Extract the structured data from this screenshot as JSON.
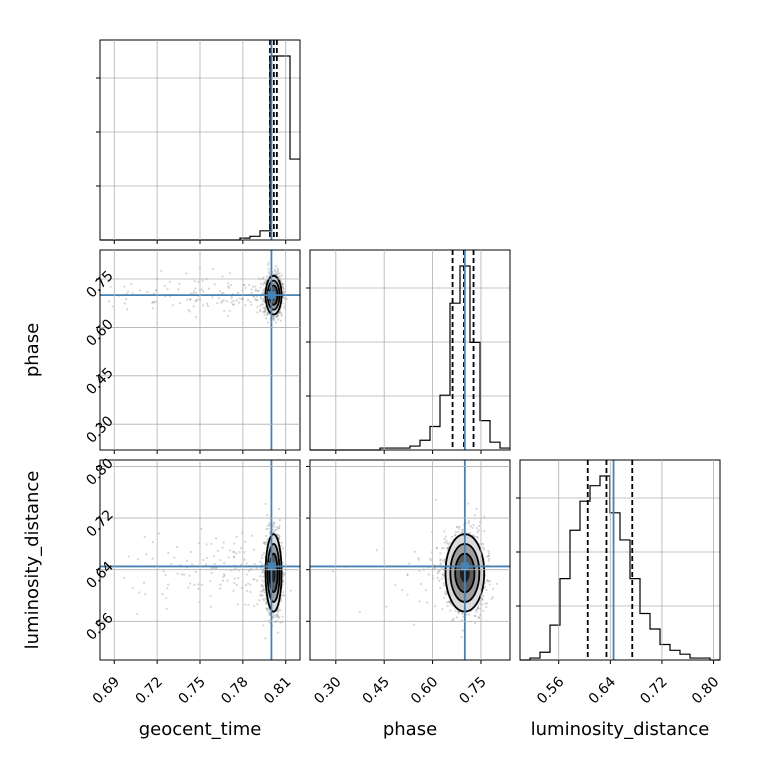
{
  "chart_data": {
    "type": "corner",
    "parameters": [
      "geocent_time",
      "phase",
      "luminosity_distance"
    ],
    "truths": {
      "geocent_time": 0.8,
      "phase": 0.7,
      "luminosity_distance": 0.645
    },
    "ranges": {
      "geocent_time": [
        0.68,
        0.82
      ],
      "phase": [
        0.22,
        0.84
      ],
      "luminosity_distance": [
        0.5,
        0.81
      ]
    },
    "ticks": {
      "geocent_time": [
        "0.69",
        "0.72",
        "0.75",
        "0.78",
        "0.81"
      ],
      "phase": [
        "0.30",
        "0.45",
        "0.60",
        "0.75"
      ],
      "luminosity_distance": [
        "0.56",
        "0.64",
        "0.72",
        "0.80"
      ]
    },
    "quantiles": {
      "geocent_time": [
        0.799,
        0.8017,
        0.8038
      ],
      "phase": [
        0.662,
        0.697,
        0.727
      ],
      "luminosity_distance": [
        0.605,
        0.634,
        0.674
      ]
    },
    "histograms": {
      "geocent_time": {
        "edges": [
          0.68,
          0.687,
          0.694,
          0.701,
          0.708,
          0.715,
          0.722,
          0.729,
          0.736,
          0.743,
          0.75,
          0.757,
          0.764,
          0.771,
          0.778,
          0.785,
          0.792,
          0.799,
          0.806,
          0.813,
          0.82
        ],
        "counts": [
          0,
          0,
          0,
          0,
          0,
          0,
          0,
          0,
          0,
          0,
          0,
          0,
          0,
          0,
          1,
          2,
          5,
          100,
          100,
          44
        ]
      },
      "phase": {
        "edges": [
          0.22,
          0.251,
          0.282,
          0.313,
          0.344,
          0.375,
          0.406,
          0.437,
          0.468,
          0.499,
          0.53,
          0.561,
          0.592,
          0.623,
          0.654,
          0.685,
          0.716,
          0.747,
          0.778,
          0.809,
          0.84
        ],
        "counts": [
          0,
          0,
          0,
          0,
          0,
          0,
          0,
          1,
          1,
          1,
          2,
          5,
          12,
          28,
          75,
          94,
          55,
          15,
          4,
          1
        ]
      },
      "luminosity_distance": {
        "edges": [
          0.5,
          0.5155,
          0.531,
          0.5465,
          0.562,
          0.5775,
          0.593,
          0.6085,
          0.624,
          0.6395,
          0.655,
          0.6705,
          0.686,
          0.7015,
          0.717,
          0.7325,
          0.748,
          0.7635,
          0.779,
          0.7945,
          0.81
        ],
        "counts": [
          0,
          1,
          4,
          18,
          42,
          67,
          82,
          90,
          95,
          76,
          62,
          42,
          24,
          16,
          8,
          5,
          3,
          1,
          1,
          0
        ]
      }
    },
    "scatter_center": {
      "geocent_time": 0.8015,
      "phase": 0.7,
      "luminosity_distance": 0.635
    },
    "scatter_spread": {
      "geocent_time": 0.0028,
      "phase": 0.03,
      "luminosity_distance": 0.03
    },
    "contour_levels": [
      0.5,
      1.0,
      1.5,
      2.0
    ],
    "grid": true,
    "colors": {
      "truth": "#4682b4",
      "hist": "#000000",
      "scatter": "#8a8a8a",
      "grid": "#b0b0b0",
      "density": [
        "#dcdcdc",
        "#a0a0a0",
        "#5a5a5a",
        "#1e1e1e"
      ]
    }
  }
}
